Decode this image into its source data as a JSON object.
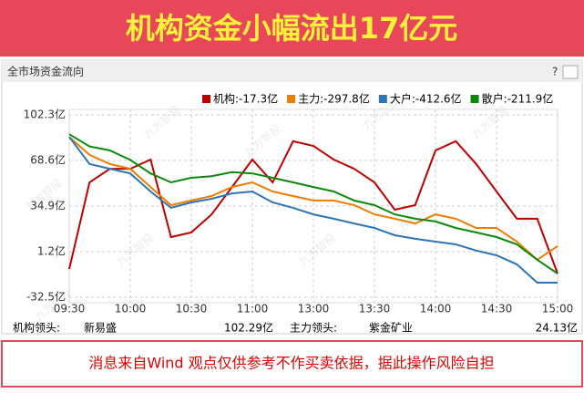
{
  "banner": {
    "title": "机构资金小幅流出17亿元"
  },
  "panel": {
    "title": "全市场资金流向",
    "help": "?"
  },
  "watermark": "九方智投",
  "chart_data": {
    "type": "line",
    "x": [
      "09:30",
      "09:40",
      "09:50",
      "10:00",
      "10:10",
      "10:20",
      "10:30",
      "10:40",
      "10:50",
      "11:00",
      "11:10",
      "11:20",
      "13:00",
      "13:10",
      "13:20",
      "13:30",
      "13:40",
      "13:50",
      "14:00",
      "14:10",
      "14:20",
      "14:30",
      "14:40",
      "14:50",
      "15:00"
    ],
    "xticks": [
      "09:30",
      "10:00",
      "10:30",
      "11:00",
      "13:00",
      "13:30",
      "14:00",
      "14:30",
      "15:00"
    ],
    "ylim": [
      -32.5,
      102.3
    ],
    "yticks": [
      {
        "value": 102.3,
        "label": "102.3亿"
      },
      {
        "value": 68.6,
        "label": "68.6亿"
      },
      {
        "value": 34.9,
        "label": "34.9亿"
      },
      {
        "value": 1.2,
        "label": "1.2亿"
      },
      {
        "value": -32.5,
        "label": "-32.5亿"
      }
    ],
    "grid": true,
    "series": [
      {
        "name": "机构:-17.3亿",
        "color": "#c00000",
        "values": [
          -11.6,
          52.4,
          62.5,
          62.5,
          69.3,
          12,
          15.4,
          28.8,
          49,
          69.3,
          52.4,
          82.8,
          79.4,
          69.3,
          62.5,
          52.4,
          32.2,
          35.6,
          76,
          82.8,
          66,
          45.7,
          25.5,
          25.5,
          -15
        ]
      },
      {
        "name": "主力:-297.8亿",
        "color": "#f07c00",
        "values": [
          86,
          72.7,
          66,
          62.5,
          49,
          35.6,
          39,
          42.3,
          49,
          52.4,
          45.7,
          42.3,
          39,
          39,
          35.6,
          28.8,
          25.5,
          22,
          28.8,
          25.5,
          18.7,
          18.7,
          8.6,
          -4.8,
          5.3
        ]
      },
      {
        "name": "大户:-412.6亿",
        "color": "#2e75b6",
        "values": [
          86,
          66,
          62.5,
          59,
          45.7,
          33.6,
          37.6,
          40.3,
          44.3,
          45.7,
          37.6,
          33.6,
          28.8,
          25.5,
          22,
          18.7,
          13.3,
          10.7,
          8.6,
          6.6,
          2,
          -1.5,
          -8.2,
          -21.7,
          -21.7
        ]
      },
      {
        "name": "散户:-211.9亿",
        "color": "#0a8a0a",
        "values": [
          88,
          79,
          76,
          69,
          59,
          52.4,
          55.8,
          57,
          60,
          59,
          55.8,
          52.4,
          49,
          45.7,
          39,
          35.6,
          28.8,
          25.5,
          23.5,
          18.7,
          15.4,
          12,
          6.6,
          -4.8,
          -15
        ]
      }
    ]
  },
  "leaders": {
    "inst_label": "机构领头:",
    "inst_name": "新易盛",
    "inst_value": "102.29亿",
    "main_label": "主力领头:",
    "main_name": "紫金矿业",
    "main_value": "24.13亿"
  },
  "footer": {
    "note": "消息来自Wind  观点仅供参考不作买卖依据，据此操作风险自担"
  }
}
